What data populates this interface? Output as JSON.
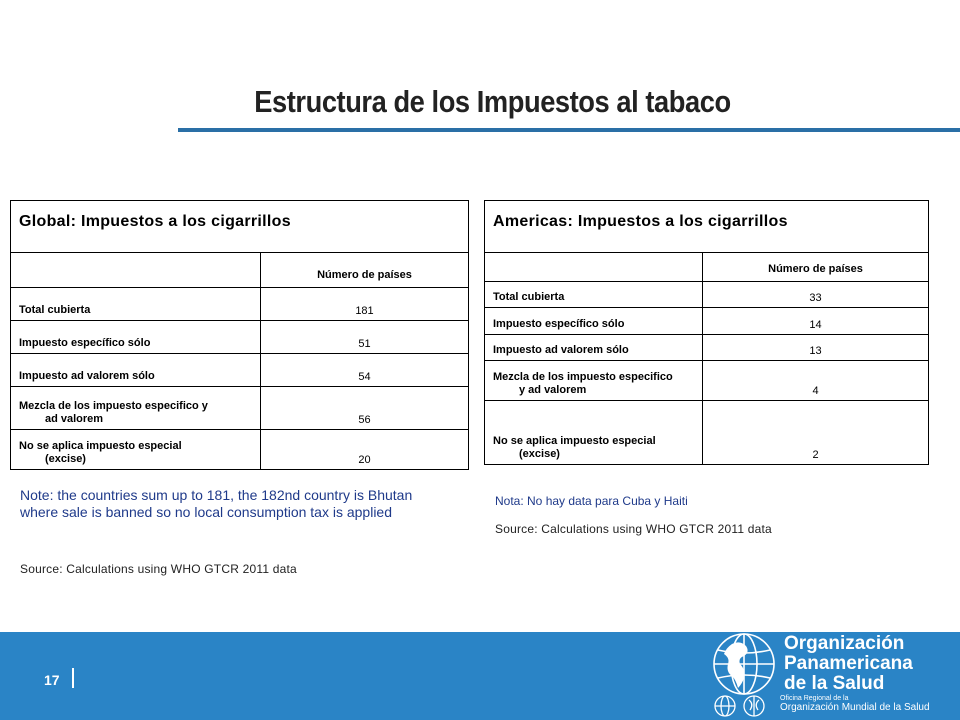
{
  "slide": {
    "title": "Estructura de los Impuestos al tabaco",
    "page_number": "17",
    "colors": {
      "accent": "#2a6fa6",
      "footer": "#2a84c6",
      "note_text": "#1f3a8a"
    }
  },
  "global_table": {
    "heading": "Global: Impuestos a los cigarrillos",
    "column_header": "Número de países",
    "rows": [
      {
        "label": "Total cubierta",
        "label_cont": "",
        "value": "181"
      },
      {
        "label": "Impuesto específico sólo",
        "label_cont": "",
        "value": "51"
      },
      {
        "label": "Impuesto ad valorem sólo",
        "label_cont": "",
        "value": "54"
      },
      {
        "label": "Mezcla de los impuesto especifico y",
        "label_cont": "ad valorem",
        "value": "56"
      },
      {
        "label": "No se aplica impuesto especial",
        "label_cont": "(excise)",
        "value": "20"
      }
    ],
    "note": "Note: the countries sum up to 181, the 182nd country is Bhutan where sale is banned so no local consumption tax is applied",
    "source": "Source: Calculations using WHO GTCR 2011 data"
  },
  "americas_table": {
    "heading": "Americas: Impuestos a los cigarrillos",
    "column_header": "Número de países",
    "rows": [
      {
        "label": "Total cubierta",
        "label_cont": "",
        "value": "33"
      },
      {
        "label": "Impuesto específico sólo",
        "label_cont": "",
        "value": "14"
      },
      {
        "label": "Impuesto ad valorem sólo",
        "label_cont": "",
        "value": "13"
      },
      {
        "label": "Mezcla de los impuesto especifico",
        "label_cont": "y ad valorem",
        "value": "4"
      },
      {
        "label": "No se aplica impuesto especial",
        "label_cont": "(excise)",
        "value": "2"
      }
    ],
    "note": "Nota: No hay data para Cuba y Haiti",
    "source": "Source: Calculations using WHO GTCR 2011 data"
  },
  "logo": {
    "line1": "Organización",
    "line2": "Panamericana",
    "line3": "de la Salud",
    "sub1": "Oficina Regional de la",
    "sub2": "Organización Mundial de la Salud",
    "icon": "globe-americas-emblem-icon"
  }
}
